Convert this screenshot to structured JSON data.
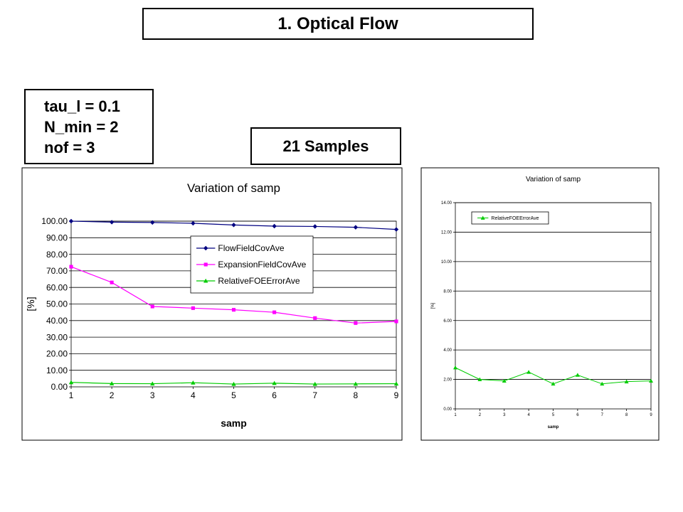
{
  "header": {
    "title": "1.  Optical Flow"
  },
  "params": {
    "lines": [
      "tau_l = 0.1",
      "N_min = 2",
      "nof = 3"
    ]
  },
  "samples_label": "21 Samples",
  "chart_data": [
    {
      "type": "line",
      "title": "Variation of samp",
      "xlabel": "samp",
      "ylabel": "[%]",
      "x": [
        1,
        2,
        3,
        4,
        5,
        6,
        7,
        8,
        9
      ],
      "xlim": [
        1,
        9
      ],
      "ylim": [
        0,
        100
      ],
      "ytick_step": 10,
      "ytick_decimals": 2,
      "grid": true,
      "legend_position": "center-right",
      "series": [
        {
          "name": "FlowFieldCovAve",
          "color": "#000080",
          "marker": "diamond",
          "values": [
            100.0,
            99.4,
            99.2,
            98.7,
            97.7,
            97.0,
            96.8,
            96.3,
            95.0
          ]
        },
        {
          "name": "ExpansionFieldCovAve",
          "color": "#ff00ff",
          "marker": "square",
          "values": [
            72.5,
            63.0,
            48.5,
            47.5,
            46.5,
            45.0,
            41.5,
            38.5,
            39.5
          ]
        },
        {
          "name": "RelativeFOEErrorAve",
          "color": "#00cc00",
          "marker": "triangle",
          "values": [
            2.7,
            2.0,
            1.9,
            2.5,
            1.7,
            2.2,
            1.7,
            1.8,
            1.9
          ]
        }
      ]
    },
    {
      "type": "line",
      "title": "Variation of samp",
      "xlabel": "samp",
      "ylabel": "[%]",
      "x": [
        1,
        2,
        3,
        4,
        5,
        6,
        7,
        8,
        9
      ],
      "xlim": [
        1,
        9
      ],
      "ylim": [
        0,
        14
      ],
      "ytick_step": 2,
      "ytick_decimals": 2,
      "grid": true,
      "legend_position": "top-left",
      "series": [
        {
          "name": "RelativeFOEErrorAve",
          "color": "#00cc00",
          "marker": "triangle",
          "values": [
            2.8,
            2.0,
            1.9,
            2.5,
            1.7,
            2.3,
            1.7,
            1.85,
            1.9
          ]
        }
      ]
    }
  ]
}
